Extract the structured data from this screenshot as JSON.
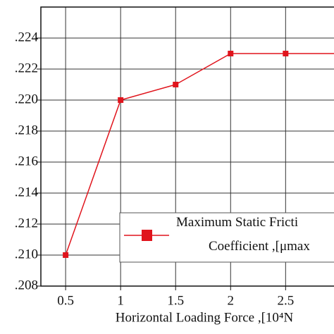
{
  "chart_data": {
    "type": "line",
    "x_label": "Horizontal Loading Force ,[10⁴N",
    "series": [
      {
        "name": "Maximum Static Fricti\nCoefficient ,[μmax",
        "color": "#e0141c",
        "x": [
          0.5,
          1.0,
          1.5,
          2.0,
          2.5
        ],
        "values": [
          0.21,
          0.22,
          0.221,
          0.223,
          0.223
        ]
      }
    ],
    "xlim": [
      0.275,
      2.94
    ],
    "xticks": [
      0.5,
      1.0,
      1.5,
      2.0,
      2.5
    ],
    "ylim": [
      0.208,
      0.226
    ],
    "yticks": [
      {
        "value": 0.208,
        "label": ".208"
      },
      {
        "value": 0.21,
        "label": ".210"
      },
      {
        "value": 0.212,
        "label": ".212"
      },
      {
        "value": 0.214,
        "label": ".214"
      },
      {
        "value": 0.216,
        "label": ".216"
      },
      {
        "value": 0.218,
        "label": ".218"
      },
      {
        "value": 0.22,
        "label": ".220"
      },
      {
        "value": 0.222,
        "label": ".222"
      },
      {
        "value": 0.224,
        "label": ".224"
      }
    ],
    "grid": true
  }
}
